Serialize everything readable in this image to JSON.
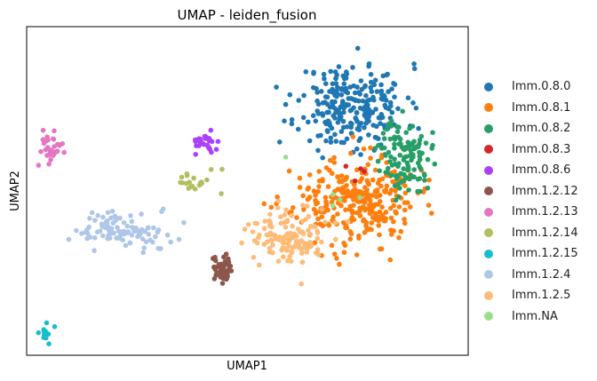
{
  "chart_data": {
    "type": "scatter",
    "title": "UMAP - leiden_fusion",
    "xlabel": "UMAP1",
    "ylabel": "UMAP2",
    "grid": false,
    "legend_placement": "right",
    "xlim": [
      -6.8,
      12.2
    ],
    "ylim": [
      -3.6,
      10.1
    ],
    "series": [
      {
        "name": "Imm.0.8.0",
        "color": "#1f77b4",
        "n": 260,
        "cx": 7.2,
        "cy": 6.8,
        "sx": 2.1,
        "sy": 1.6,
        "seed": 11
      },
      {
        "name": "Imm.0.8.1",
        "color": "#ff7f0e",
        "n": 300,
        "cx": 7.3,
        "cy": 2.8,
        "sx": 2.4,
        "sy": 1.6,
        "seed": 23
      },
      {
        "name": "Imm.0.8.2",
        "color": "#279e68",
        "n": 120,
        "cx": 9.5,
        "cy": 4.7,
        "sx": 1.0,
        "sy": 1.4,
        "seed": 37
      },
      {
        "name": "Imm.0.8.3",
        "color": "#d62728",
        "n": 4,
        "cx": 7.0,
        "cy": 4.0,
        "sx": 0.8,
        "sy": 0.6,
        "seed": 41
      },
      {
        "name": "Imm.0.8.6",
        "color": "#aa40fc",
        "n": 30,
        "cx": 0.9,
        "cy": 5.3,
        "sx": 0.6,
        "sy": 0.4,
        "seed": 53
      },
      {
        "name": "Imm.1.2.12",
        "color": "#8c564b",
        "n": 55,
        "cx": 1.6,
        "cy": 0.0,
        "sx": 0.4,
        "sy": 0.6,
        "seed": 61
      },
      {
        "name": "Imm.1.2.13",
        "color": "#e377c2",
        "n": 34,
        "cx": -5.7,
        "cy": 5.0,
        "sx": 0.5,
        "sy": 0.6,
        "seed": 71
      },
      {
        "name": "Imm.1.2.14",
        "color": "#b5bd61",
        "n": 20,
        "cx": 0.4,
        "cy": 3.6,
        "sx": 0.9,
        "sy": 0.4,
        "seed": 83
      },
      {
        "name": "Imm.1.2.15",
        "color": "#17becf",
        "n": 12,
        "cx": -6.1,
        "cy": -2.7,
        "sx": 0.3,
        "sy": 0.4,
        "seed": 97
      },
      {
        "name": "Imm.1.2.4",
        "color": "#aec7e8",
        "n": 100,
        "cx": -2.7,
        "cy": 1.6,
        "sx": 1.9,
        "sy": 0.7,
        "seed": 101
      },
      {
        "name": "Imm.1.2.5",
        "color": "#ffbb78",
        "n": 130,
        "cx": 4.5,
        "cy": 1.3,
        "sx": 1.6,
        "sy": 1.0,
        "seed": 113
      },
      {
        "name": "Imm.NA",
        "color": "#98df8a",
        "n": 5,
        "cx": 6.3,
        "cy": 3.2,
        "sx": 1.5,
        "sy": 1.2,
        "seed": 127
      }
    ]
  }
}
